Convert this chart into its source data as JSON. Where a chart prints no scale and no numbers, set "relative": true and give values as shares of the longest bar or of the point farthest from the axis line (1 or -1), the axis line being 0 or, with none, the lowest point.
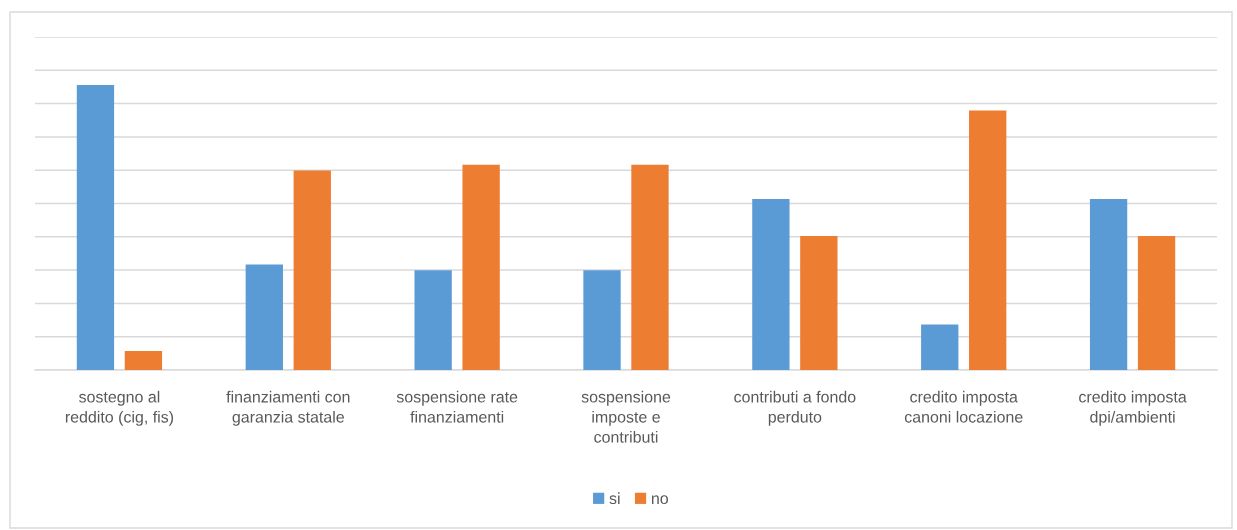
{
  "chart_data": {
    "type": "bar",
    "relative": true,
    "categories": [
      "sostegno al\nreddito (cig, fis)",
      "finanziamenti con\ngaranzia statale",
      "sospensione rate\nfinanziamenti",
      "sospensione\nimposte e\ncontributi",
      "contributi a fondo\nperduto",
      "credito imposta\ncanoni locazione",
      "credito imposta\ndpi/ambienti"
    ],
    "series": [
      {
        "name": "si",
        "color": "#5b9bd5",
        "values": [
          1.0,
          0.37,
          0.35,
          0.35,
          0.6,
          0.16,
          0.6
        ]
      },
      {
        "name": "no",
        "color": "#ed7d31",
        "values": [
          0.067,
          0.7,
          0.72,
          0.72,
          0.47,
          0.91,
          0.47
        ]
      }
    ],
    "grid": "y",
    "legend": "bottom",
    "tick_labels": "x"
  }
}
